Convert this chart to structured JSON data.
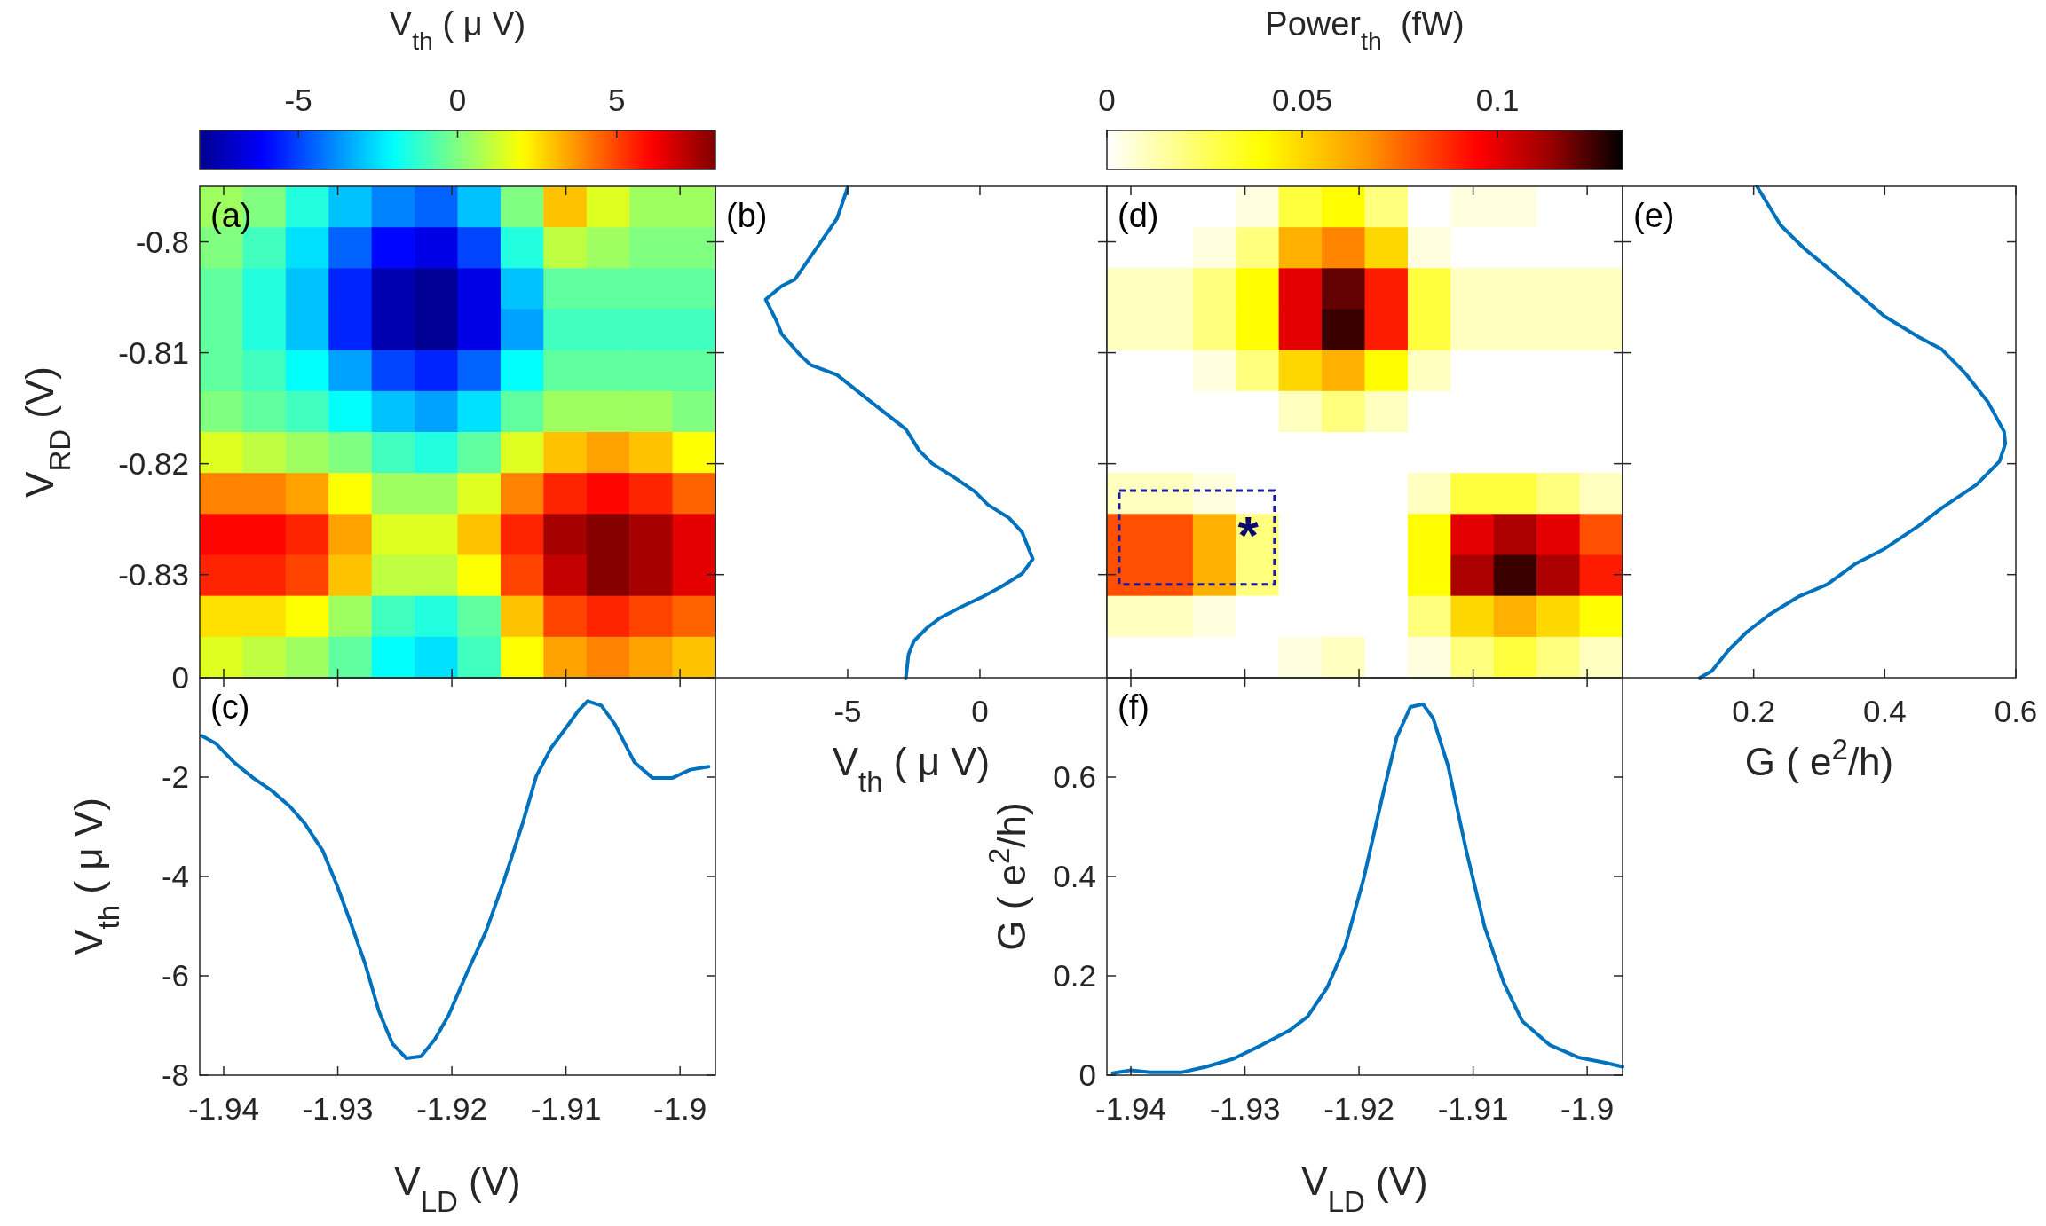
{
  "chart_data": [
    {
      "type": "heatmap",
      "clabel": "V$_{th}$ ( μ V)",
      "ylabel": "V$_{RD}$ (V)",
      "annotations": [
        "(a)"
      ],
      "xlim": [
        -1.9421,
        -1.8969
      ],
      "xticks": [
        -1.94,
        -1.93,
        -1.92,
        -1.91,
        -1.9
      ],
      "ylim": [
        -0.8393,
        -0.795
      ],
      "yticks": [
        -0.83,
        -0.82,
        -0.81,
        -0.8
      ],
      "clim": [
        -8.1,
        8.1
      ],
      "cticks": [
        -5,
        0,
        5
      ],
      "tick_labels": "y",
      "cells": [
        [
          0.5,
          0,
          -1.5,
          -3,
          -4,
          -4.5,
          -3,
          0,
          3,
          1.5,
          0.5,
          0.5
        ],
        [
          0,
          -1,
          -2.5,
          -4.5,
          -6,
          -6.5,
          -5,
          -1.5,
          1,
          0.5,
          0,
          0
        ],
        [
          -0.5,
          -1.5,
          -3,
          -5.5,
          -7.5,
          -8,
          -6.5,
          -3,
          -0.5,
          -0.5,
          -0.5,
          -0.5
        ],
        [
          -0.5,
          -1.5,
          -3,
          -5.5,
          -7.5,
          -8,
          -6.5,
          -3.5,
          -1,
          -1,
          -1,
          -1
        ],
        [
          -0.5,
          -1,
          -2,
          -3.5,
          -5,
          -5.5,
          -4.5,
          -2,
          -0.5,
          -0.5,
          -0.5,
          -0.5
        ],
        [
          0,
          -0.5,
          -1,
          -2,
          -3,
          -3.5,
          -2.5,
          -0.5,
          0.5,
          0.5,
          0.5,
          0
        ],
        [
          1.5,
          1,
          0.5,
          0,
          -1,
          -1.5,
          -0.5,
          1.5,
          3,
          3.5,
          3,
          2
        ],
        [
          4,
          4,
          3.5,
          2,
          0.5,
          0.5,
          1.5,
          4,
          5.5,
          6,
          5.5,
          4.5
        ],
        [
          6,
          6,
          5.5,
          3.5,
          1.5,
          1.5,
          3,
          5.5,
          7.5,
          8,
          7.5,
          6.5
        ],
        [
          5.5,
          5.5,
          5,
          3,
          1,
          1,
          2,
          5,
          7,
          8,
          7.5,
          6.5
        ],
        [
          2.5,
          2.5,
          2,
          0.5,
          -1,
          -1.5,
          -0.5,
          3,
          5,
          5.5,
          5,
          4.5
        ],
        [
          1.5,
          1,
          0.5,
          -0.5,
          -2,
          -2.5,
          -1,
          2,
          3.5,
          4,
          3.5,
          3
        ]
      ]
    },
    {
      "type": "line",
      "xlabel": "V$_{th}$ ( μ V)",
      "annotations": [
        "(b)"
      ],
      "xlim": [
        -10,
        4.8
      ],
      "xticks": [
        -5,
        0
      ],
      "ylim": [
        -0.8393,
        -0.795
      ],
      "yticks": [
        -0.83,
        -0.82,
        -0.81,
        -0.8
      ],
      "tick_labels": "x",
      "series": [
        {
          "color": "#0072bd",
          "x": [
            -5.0,
            -5.4,
            -6.1,
            -7.0,
            -7.5,
            -8.1,
            -7.7,
            -7.5,
            -6.8,
            -6.4,
            -5.4,
            -4.4,
            -3.6,
            -2.8,
            -2.3,
            -1.8,
            -1.0,
            -0.2,
            0.3,
            1.1,
            1.6,
            2.0,
            1.6,
            0.8,
            0.1,
            -0.7,
            -1.5,
            -2.0,
            -2.5,
            -2.7,
            -2.8
          ],
          "values": [
            -0.7951,
            -0.7979,
            -0.8003,
            -0.8034,
            -0.804,
            -0.8052,
            -0.8071,
            -0.8083,
            -0.8102,
            -0.8111,
            -0.812,
            -0.8139,
            -0.8154,
            -0.8169,
            -0.8188,
            -0.82,
            -0.8212,
            -0.8225,
            -0.8237,
            -0.8249,
            -0.8262,
            -0.8286,
            -0.8299,
            -0.8311,
            -0.832,
            -0.8329,
            -0.8339,
            -0.8348,
            -0.836,
            -0.8372,
            -0.8393
          ]
        }
      ]
    },
    {
      "type": "line",
      "xlabel": "V$_{LD}$ (V)",
      "ylabel": "V$_{th}$ ( μ V)",
      "annotations": [
        "(c)"
      ],
      "xlim": [
        -1.9421,
        -1.8969
      ],
      "xticks": [
        -1.94,
        -1.93,
        -1.92,
        -1.91,
        -1.9
      ],
      "ylim": [
        -8,
        0
      ],
      "yticks": [
        -8,
        -6,
        -4,
        -2,
        0
      ],
      "series": [
        {
          "color": "#0072bd",
          "x": [
            -1.9419,
            -1.9407,
            -1.9391,
            -1.9374,
            -1.9358,
            -1.9342,
            -1.9329,
            -1.9313,
            -1.9301,
            -1.9289,
            -1.9276,
            -1.9264,
            -1.9252,
            -1.924,
            -1.9227,
            -1.9215,
            -1.9203,
            -1.9187,
            -1.917,
            -1.9154,
            -1.9138,
            -1.9126,
            -1.9113,
            -1.9101,
            -1.9089,
            -1.9081,
            -1.9069,
            -1.9057,
            -1.904,
            -1.9024,
            -1.9007,
            -1.8991,
            -1.8975
          ],
          "values": [
            -1.17,
            -1.32,
            -1.7,
            -2.02,
            -2.27,
            -2.59,
            -2.93,
            -3.49,
            -4.16,
            -4.91,
            -5.76,
            -6.71,
            -7.37,
            -7.66,
            -7.62,
            -7.28,
            -6.8,
            -5.95,
            -5.1,
            -4.06,
            -2.93,
            -1.98,
            -1.41,
            -1.04,
            -0.66,
            -0.47,
            -0.56,
            -0.94,
            -1.7,
            -2.02,
            -2.02,
            -1.85,
            -1.79
          ]
        }
      ]
    },
    {
      "type": "heatmap",
      "clabel": "Power$_{th}$  (fW)",
      "annotations": [
        "(d)",
        "*"
      ],
      "xlim": [
        -1.9421,
        -1.8969
      ],
      "xticks": [
        -1.94,
        -1.93,
        -1.92,
        -1.91,
        -1.9
      ],
      "ylim": [
        -0.8393,
        -0.795
      ],
      "yticks": [
        -0.83,
        -0.82,
        -0.81,
        -0.8
      ],
      "clim": [
        0,
        0.132
      ],
      "cticks": [
        0,
        0.05,
        0.1
      ],
      "tick_labels": false,
      "cells": [
        [
          0,
          0,
          0,
          0.005,
          0.03,
          0.04,
          0.02,
          0,
          0.005,
          0.005,
          0,
          0
        ],
        [
          0,
          0,
          0.005,
          0.02,
          0.06,
          0.07,
          0.05,
          0.005,
          0,
          0,
          0,
          0
        ],
        [
          0.01,
          0.01,
          0.02,
          0.04,
          0.1,
          0.12,
          0.09,
          0.03,
          0.01,
          0.01,
          0.01,
          0.01
        ],
        [
          0.01,
          0.01,
          0.02,
          0.04,
          0.1,
          0.125,
          0.09,
          0.03,
          0.01,
          0.01,
          0.01,
          0.01
        ],
        [
          0,
          0,
          0.005,
          0.02,
          0.05,
          0.06,
          0.04,
          0.01,
          0,
          0,
          0,
          0
        ],
        [
          0,
          0,
          0,
          0,
          0.01,
          0.02,
          0.01,
          0,
          0,
          0,
          0,
          0
        ],
        [
          0,
          0,
          0,
          0,
          0,
          0,
          0,
          0,
          0,
          0,
          0,
          0
        ],
        [
          0.01,
          0.01,
          0.005,
          0,
          0,
          0,
          0,
          0.01,
          0.03,
          0.03,
          0.02,
          0.01
        ],
        [
          0.08,
          0.08,
          0.06,
          0.02,
          0,
          0,
          0,
          0.04,
          0.1,
          0.11,
          0.1,
          0.08
        ],
        [
          0.08,
          0.08,
          0.06,
          0.02,
          0,
          0,
          0,
          0.04,
          0.11,
          0.125,
          0.11,
          0.09
        ],
        [
          0.01,
          0.01,
          0.005,
          0,
          0,
          0,
          0,
          0.02,
          0.05,
          0.06,
          0.05,
          0.04
        ],
        [
          0,
          0,
          0,
          0,
          0.005,
          0.01,
          0,
          0.005,
          0.02,
          0.03,
          0.02,
          0.01
        ]
      ]
    },
    {
      "type": "line",
      "xlabel": "G ( e$^{2}$/h)",
      "annotations": [
        "(e)"
      ],
      "xlim": [
        0,
        0.6
      ],
      "xticks": [
        0.2,
        0.4,
        0.6
      ],
      "ylim": [
        -0.8393,
        -0.795
      ],
      "yticks": [
        -0.83,
        -0.82,
        -0.81,
        -0.8
      ],
      "tick_labels": "x",
      "series": [
        {
          "color": "#0072bd",
          "x": [
            0.205,
            0.241,
            0.277,
            0.32,
            0.364,
            0.399,
            0.452,
            0.487,
            0.522,
            0.558,
            0.582,
            0.584,
            0.575,
            0.54,
            0.487,
            0.452,
            0.399,
            0.356,
            0.312,
            0.268,
            0.224,
            0.189,
            0.162,
            0.136,
            0.118
          ],
          "values": [
            -0.795,
            -0.7985,
            -0.8006,
            -0.8027,
            -0.8049,
            -0.8067,
            -0.8086,
            -0.8097,
            -0.8118,
            -0.8145,
            -0.8171,
            -0.8182,
            -0.8198,
            -0.8219,
            -0.824,
            -0.8256,
            -0.8277,
            -0.829,
            -0.8309,
            -0.832,
            -0.8336,
            -0.8352,
            -0.8368,
            -0.8387,
            -0.8393
          ]
        }
      ]
    },
    {
      "type": "line",
      "xlabel": "V$_{LD}$ (V)",
      "ylabel": "G ( e$^{2}$/h)",
      "annotations": [
        "(f)"
      ],
      "xlim": [
        -1.9421,
        -1.8969
      ],
      "xticks": [
        -1.94,
        -1.93,
        -1.92,
        -1.91,
        -1.9
      ],
      "ylim": [
        0,
        0.8
      ],
      "yticks": [
        0,
        0.2,
        0.4,
        0.6
      ],
      "series": [
        {
          "color": "#0072bd",
          "x": [
            -1.9416,
            -1.94,
            -1.9383,
            -1.9355,
            -1.9334,
            -1.931,
            -1.9285,
            -1.9261,
            -1.9245,
            -1.9228,
            -1.9212,
            -1.9196,
            -1.9179,
            -1.9167,
            -1.9155,
            -1.9144,
            -1.9135,
            -1.9122,
            -1.9106,
            -1.909,
            -1.9073,
            -1.9057,
            -1.9033,
            -1.9008,
            -1.8984,
            -1.8969
          ],
          "values": [
            0.004,
            0.01,
            0.006,
            0.006,
            0.017,
            0.033,
            0.061,
            0.09,
            0.118,
            0.176,
            0.261,
            0.395,
            0.566,
            0.68,
            0.741,
            0.747,
            0.718,
            0.623,
            0.452,
            0.299,
            0.185,
            0.109,
            0.061,
            0.036,
            0.025,
            0.017
          ]
        }
      ]
    }
  ]
}
